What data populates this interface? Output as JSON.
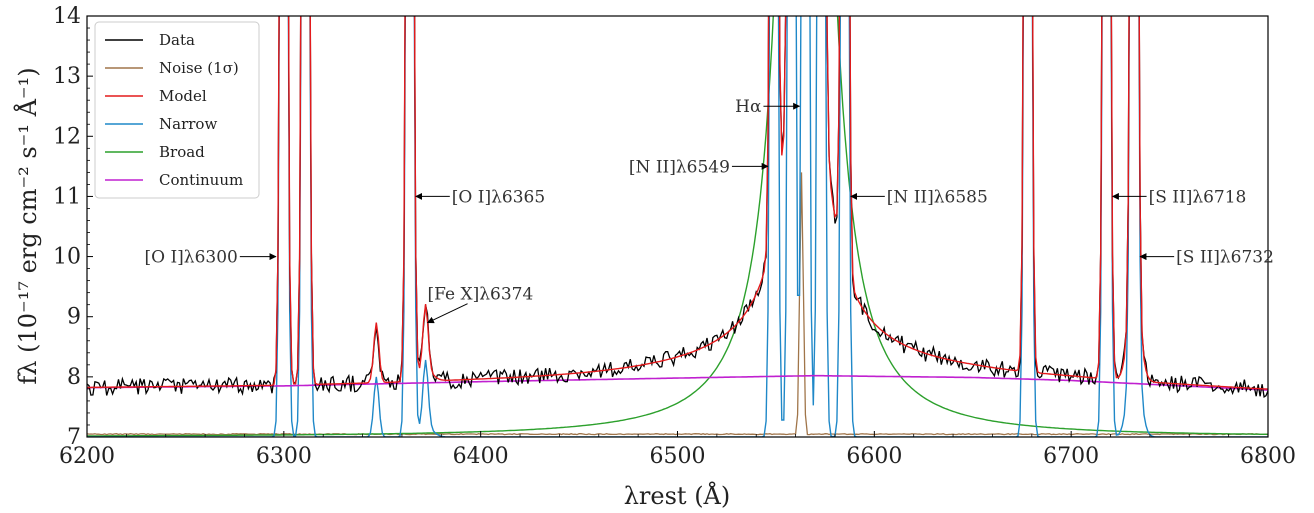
{
  "chart_data": {
    "type": "line",
    "xlabel": "λrest (Å)",
    "ylabel": "fλ (10⁻¹⁷ erg cm⁻² s⁻¹ Å⁻¹)",
    "xlim": [
      6200,
      6800
    ],
    "ylim": [
      7,
      14
    ],
    "xticks": [
      "6200",
      "6300",
      "6400",
      "6500",
      "6600",
      "6700",
      "6800"
    ],
    "yticks": [
      "7",
      "8",
      "9",
      "10",
      "11",
      "12",
      "13",
      "14"
    ],
    "legend_position": "top-left",
    "grid": false,
    "series": [
      {
        "name": "Data",
        "color": "#000000"
      },
      {
        "name": "Noise (1σ)",
        "color": "#a0754a"
      },
      {
        "name": "Model",
        "color": "#e41a1c"
      },
      {
        "name": "Narrow",
        "color": "#1f88c8"
      },
      {
        "name": "Broad",
        "color": "#2ca02c"
      },
      {
        "name": "Continuum",
        "color": "#c020d0"
      }
    ],
    "continuum": {
      "x": [
        6200,
        6300,
        6400,
        6500,
        6570,
        6650,
        6700,
        6800
      ],
      "y": [
        7.82,
        7.85,
        7.92,
        7.98,
        8.02,
        7.99,
        7.94,
        7.78
      ]
    },
    "lines": [
      {
        "label": "[O I]λ6300",
        "wavelength": 6300,
        "y": 10.0
      },
      {
        "label": "[O I]λ6365",
        "wavelength": 6364,
        "y": 11.0
      },
      {
        "label": "[Fe X]λ6374",
        "wavelength": 6372,
        "y": 8.95
      },
      {
        "label": "[N II]λ6549",
        "wavelength": 6549,
        "y": 11.5
      },
      {
        "label": "Hα",
        "wavelength": 6565,
        "y": 12.5
      },
      {
        "label": "[N II]λ6585",
        "wavelength": 6585,
        "y": 11.0
      },
      {
        "label": "[S II]λ6718",
        "wavelength": 6718,
        "y": 11.0
      },
      {
        "label": "[S II]λ6732",
        "wavelength": 6732,
        "y": 10.0
      }
    ],
    "narrow_peaks": [
      6300,
      6311,
      6347,
      6364,
      6372,
      6549,
      6558,
      6565,
      6573,
      6585,
      6678,
      6718,
      6732
    ],
    "broad_center": 6565,
    "noise_spike": {
      "x": 6563,
      "y": 11.4
    }
  }
}
